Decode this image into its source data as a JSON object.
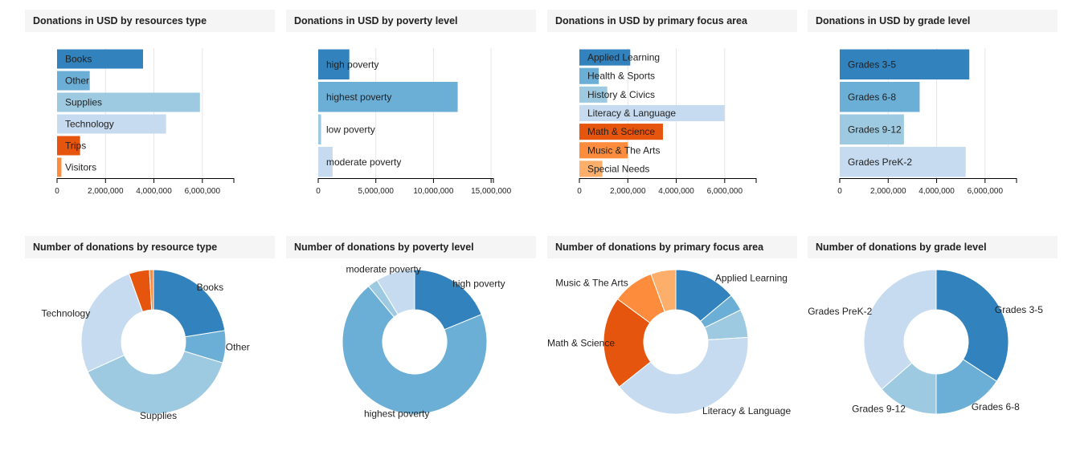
{
  "colors": {
    "blue_1": "#3182bd",
    "blue_2": "#6baed6",
    "blue_3": "#9ecae1",
    "blue_4": "#c6dbef",
    "orange_1": "#e6550d",
    "orange_2": "#fd8d3c",
    "orange_3": "#fdae6b",
    "grid": "#e6e6e6",
    "panel_header_bg": "#f5f5f5"
  },
  "chart_data": [
    {
      "type": "bar",
      "orientation": "horizontal",
      "title": "Donations in USD by resources type",
      "categories": [
        "Books",
        "Other",
        "Supplies",
        "Technology",
        "Trips",
        "Visitors"
      ],
      "values": [
        3550000,
        1350000,
        5900000,
        4500000,
        950000,
        180000
      ],
      "colors": [
        "#3182bd",
        "#6baed6",
        "#9ecae1",
        "#c6dbef",
        "#e6550d",
        "#fd8d3c"
      ],
      "xlim": [
        0,
        7300000
      ],
      "ticks": [
        0,
        2000000,
        4000000,
        6000000
      ],
      "tick_labels": [
        "0",
        "2,000,000",
        "4,000,000",
        "6,000,000"
      ],
      "grid": true
    },
    {
      "type": "bar",
      "orientation": "horizontal",
      "title": "Donations in USD by poverty level",
      "categories": [
        "high poverty",
        "highest poverty",
        "low poverty",
        "moderate poverty"
      ],
      "values": [
        2700000,
        12100000,
        250000,
        1250000
      ],
      "colors": [
        "#3182bd",
        "#6baed6",
        "#9ecae1",
        "#c6dbef"
      ],
      "xlim": [
        0,
        15200000
      ],
      "ticks": [
        0,
        5000000,
        10000000,
        15000000
      ],
      "tick_labels": [
        "0",
        "5,000,000",
        "10,000,000",
        "15,000,000"
      ],
      "grid": true
    },
    {
      "type": "bar",
      "orientation": "horizontal",
      "title": "Donations in USD by primary focus area",
      "categories": [
        "Applied Learning",
        "Health & Sports",
        "History & Civics",
        "Literacy & Language",
        "Math & Science",
        "Music & The Arts",
        "Special Needs"
      ],
      "values": [
        2100000,
        800000,
        1150000,
        6000000,
        3450000,
        2000000,
        950000
      ],
      "colors": [
        "#3182bd",
        "#6baed6",
        "#9ecae1",
        "#c6dbef",
        "#e6550d",
        "#fd8d3c",
        "#fdae6b"
      ],
      "xlim": [
        0,
        7300000
      ],
      "ticks": [
        0,
        2000000,
        4000000,
        6000000
      ],
      "tick_labels": [
        "0",
        "2,000,000",
        "4,000,000",
        "6,000,000"
      ],
      "grid": true
    },
    {
      "type": "bar",
      "orientation": "horizontal",
      "title": "Donations in USD by grade level",
      "categories": [
        "Grades 3-5",
        "Grades 6-8",
        "Grades 9-12",
        "Grades PreK-2"
      ],
      "values": [
        5350000,
        3300000,
        2650000,
        5200000
      ],
      "colors": [
        "#3182bd",
        "#6baed6",
        "#9ecae1",
        "#c6dbef"
      ],
      "xlim": [
        0,
        7300000
      ],
      "ticks": [
        0,
        2000000,
        4000000,
        6000000
      ],
      "tick_labels": [
        "0",
        "2,000,000",
        "4,000,000",
        "6,000,000"
      ],
      "grid": true
    },
    {
      "type": "pie",
      "donut": true,
      "title": "Number of donations by resource type",
      "categories": [
        "Books",
        "Other",
        "Supplies",
        "Technology",
        "Trips",
        "Visitors"
      ],
      "values": [
        22.5,
        7.2,
        38.5,
        26.3,
        4.6,
        0.9
      ],
      "colors": [
        "#3182bd",
        "#6baed6",
        "#9ecae1",
        "#c6dbef",
        "#e6550d",
        "#fd8d3c"
      ],
      "labels_shown": [
        "Books",
        "Other",
        "Supplies",
        "Technology"
      ]
    },
    {
      "type": "pie",
      "donut": true,
      "title": "Number of donations by poverty level",
      "categories": [
        "high poverty",
        "highest poverty",
        "low poverty",
        "moderate poverty"
      ],
      "values": [
        18.8,
        70.2,
        2.3,
        8.7
      ],
      "colors": [
        "#3182bd",
        "#6baed6",
        "#9ecae1",
        "#c6dbef"
      ],
      "labels_shown": [
        "high poverty",
        "highest poverty",
        "moderate poverty"
      ]
    },
    {
      "type": "pie",
      "donut": true,
      "title": "Number of donations by primary focus area",
      "categories": [
        "Applied Learning",
        "Health & Sports",
        "History & Civics",
        "Literacy & Language",
        "Math & Science",
        "Music & The Arts",
        "Special Needs"
      ],
      "values": [
        13.9,
        3.8,
        6.3,
        40.3,
        20.8,
        9.3,
        5.6
      ],
      "colors": [
        "#3182bd",
        "#6baed6",
        "#9ecae1",
        "#c6dbef",
        "#e6550d",
        "#fd8d3c",
        "#fdae6b"
      ],
      "labels_shown": [
        "Applied Learning",
        "Literacy & Language",
        "Math & Science",
        "Music & The Arts"
      ]
    },
    {
      "type": "pie",
      "donut": true,
      "title": "Number of donations by grade level",
      "categories": [
        "Grades 3-5",
        "Grades 6-8",
        "Grades 9-12",
        "Grades PreK-2"
      ],
      "values": [
        34.2,
        15.8,
        13.6,
        36.4
      ],
      "colors": [
        "#3182bd",
        "#6baed6",
        "#9ecae1",
        "#c6dbef"
      ],
      "labels_shown": [
        "Grades 3-5",
        "Grades 6-8",
        "Grades 9-12",
        "Grades PreK-2"
      ]
    }
  ]
}
